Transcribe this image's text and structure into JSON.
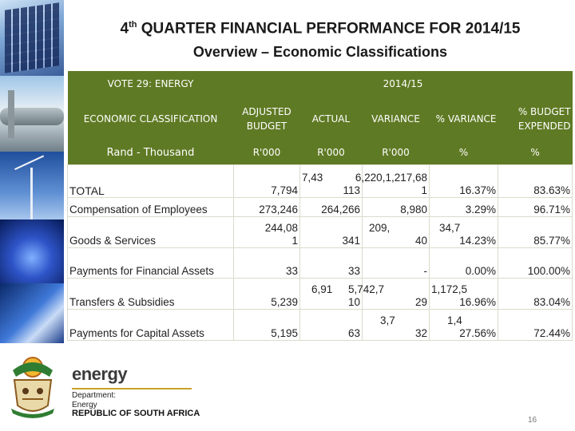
{
  "title": {
    "line1_prefix": "4",
    "line1_sup": "th",
    "line1_rest": " QUARTER FINANCIAL PERFORMANCE FOR 2014/15",
    "line2": "Overview – Economic Classifications"
  },
  "table": {
    "vote": "VOTE 29: ENERGY",
    "year": "2014/15",
    "classification_label": "ECONOMIC CLASSIFICATION",
    "cols": {
      "adjusted_budget": "ADJUSTED BUDGET",
      "actual": "ACTUAL",
      "variance": "VARIANCE",
      "pct_variance": "% VARIANCE",
      "pct_budget_expended": "% BUDGET EXPENDED"
    },
    "units": {
      "label": "Rand - Thousand",
      "adjusted_budget": "R'000",
      "actual": "R'000",
      "variance": "R'000",
      "pct_variance": "%",
      "pct_budget_expended": "%"
    },
    "rows": [
      {
        "name": "TOTAL",
        "budget": "7,794",
        "actual": "7,43 113",
        "actual_l1": "7,43",
        "actual_l2": "113",
        "variance": "6,220,1,217,68 1",
        "variance_l1": "6,220,1,217,68",
        "variance_l2": "1",
        "pct_var": "16.37%",
        "pct_exp": "83.63%"
      },
      {
        "name": "Compensation of Employees",
        "budget": "273,246",
        "actual": "264,266",
        "variance": "8,980",
        "pct_var": "3.29%",
        "pct_exp": "96.71%"
      },
      {
        "name": "Goods & Services",
        "budget_l1": "244,08",
        "budget_l2": "1",
        "actual": "341",
        "variance_l1": "209,",
        "variance_l2": "40",
        "pct_var_l1": "34,7",
        "pct_var": "14.23%",
        "pct_exp": "85.77%"
      },
      {
        "name": "Payments for Financial Assets",
        "budget": "33",
        "actual": "33",
        "variance": "-",
        "pct_var": "0.00%",
        "pct_exp": "100.00%"
      },
      {
        "name": "Transfers & Subsidies",
        "budget": "5,239",
        "actual_l1": "6,91",
        "actual_l2": "10",
        "variance_l1": "5,742,7",
        "variance_l2": "29",
        "pct_var_l1": "1,172,5",
        "pct_var": "16.96%",
        "pct_exp": "83.04%"
      },
      {
        "name": "Payments for Capital Assets",
        "budget": "5,195",
        "actual": "63",
        "variance_l1": "3,7",
        "variance_l2": "32",
        "pct_var_l1": "1,4",
        "pct_var": "27.56%",
        "pct_exp": "72.44%"
      }
    ]
  },
  "branding": {
    "name": "energy",
    "dept_line1": "Department:",
    "dept_line2": "Energy",
    "country": "REPUBLIC OF SOUTH AFRICA"
  },
  "page_number": "16",
  "colors": {
    "header_bg": "#5f7a24",
    "header_text": "#ffffff",
    "accent": "#c9a227"
  }
}
